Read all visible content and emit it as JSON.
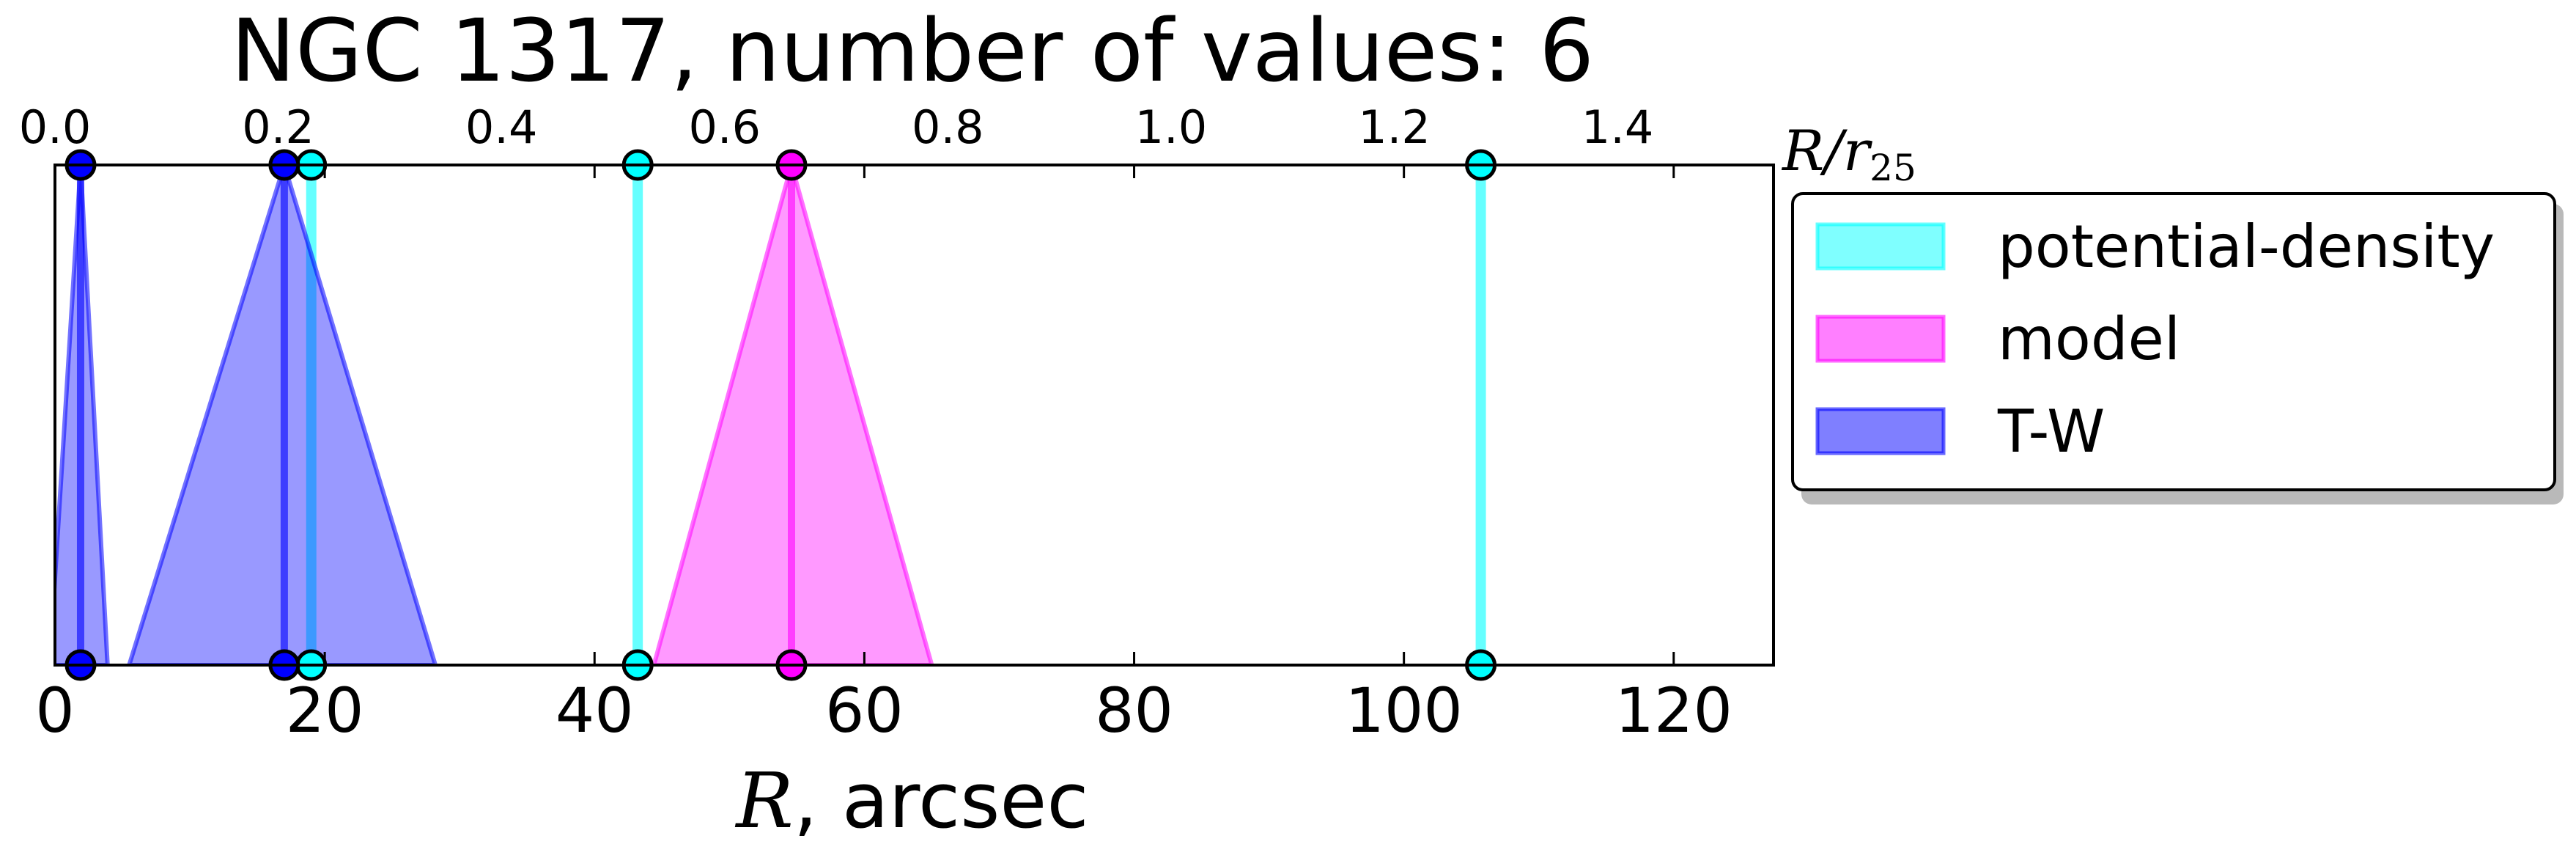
{
  "chart_data": {
    "type": "area",
    "title": "NGC 1317, number of values: 6",
    "xlabel": "R",
    "xlabel_unit": ", arcsec",
    "xlim": [
      0,
      127.4
    ],
    "xticks": [
      0,
      20,
      40,
      60,
      80,
      100,
      120
    ],
    "top_axis": {
      "label": "R/r",
      "label_sub": "25",
      "xlim": [
        0,
        1.5398
      ],
      "ticks": [
        "0.0",
        "0.2",
        "0.4",
        "0.6",
        "0.8",
        "1.0",
        "1.2",
        "1.4"
      ]
    },
    "grid": false,
    "legend_position": "outside-right",
    "series": [
      {
        "name": "potential-density",
        "color": "#00ffff",
        "type": "lines",
        "values": [
          19.0,
          43.2,
          105.7
        ]
      },
      {
        "name": "model",
        "color": "#ff00ff",
        "type": "triangles",
        "values": [
          {
            "x": 54.6,
            "left": 44.4,
            "right": 65.0
          }
        ]
      },
      {
        "name": "T-W",
        "color": "#0000ff",
        "type": "triangles",
        "values": [
          {
            "x": 1.9,
            "left": -0.4,
            "right": 3.9
          },
          {
            "x": 17.0,
            "left": 5.5,
            "right": 28.2
          }
        ]
      }
    ]
  }
}
